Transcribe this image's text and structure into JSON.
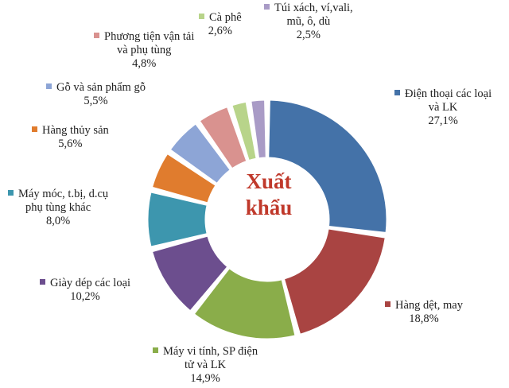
{
  "chart_data": {
    "type": "pie",
    "variant": "exploded-donut",
    "center_label": "Xuất khẩu",
    "slices": [
      {
        "label": [
          "Điện thoại các loại",
          "và LK"
        ],
        "value": 27.1,
        "pct_text": "27,1%",
        "color": "#4472A8"
      },
      {
        "label": [
          "Hàng dệt, may"
        ],
        "value": 18.8,
        "pct_text": "18,8%",
        "color": "#A94442"
      },
      {
        "label": [
          "Máy vi tính, SP điện",
          "tử và LK"
        ],
        "value": 14.9,
        "pct_text": "14,9%",
        "color": "#8AAD4A"
      },
      {
        "label": [
          "Giày dép các loại"
        ],
        "value": 10.2,
        "pct_text": "10,2%",
        "color": "#6C4E8E"
      },
      {
        "label": [
          "Máy móc, t.bị, d.cụ",
          "phụ tùng khác"
        ],
        "value": 8.0,
        "pct_text": "8,0%",
        "color": "#3D96AE"
      },
      {
        "label": [
          "Hàng thủy sản"
        ],
        "value": 5.6,
        "pct_text": "5,6%",
        "color": "#E07C2E"
      },
      {
        "label": [
          "Gỗ và sản phẩm gỗ"
        ],
        "value": 5.5,
        "pct_text": "5,5%",
        "color": "#8DA5D6"
      },
      {
        "label": [
          "Phương tiện vận tải",
          "và phụ tùng"
        ],
        "value": 4.8,
        "pct_text": "4,8%",
        "color": "#D9928F"
      },
      {
        "label": [
          "Cà phê"
        ],
        "value": 2.6,
        "pct_text": "2,6%",
        "color": "#B8D48A"
      },
      {
        "label": [
          "Túi xách, ví,vali,",
          "mũ, ô, dù"
        ],
        "value": 2.5,
        "pct_text": "2,5%",
        "color": "#A99BC6"
      }
    ]
  }
}
